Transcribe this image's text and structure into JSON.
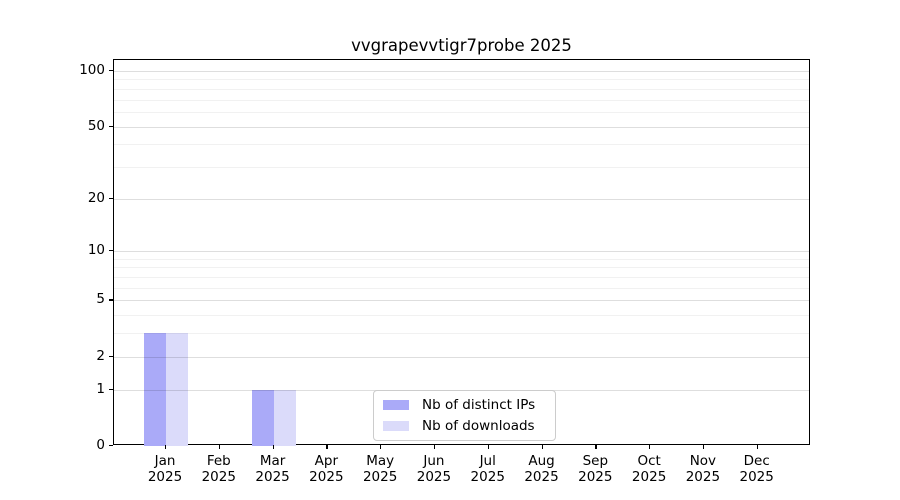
{
  "title": "vvgrapevvtigr7probe 2025",
  "chart_data": {
    "type": "bar",
    "title": "vvgrapevvtigr7probe 2025",
    "categories": [
      "Jan 2025",
      "Feb 2025",
      "Mar 2025",
      "Apr 2025",
      "May 2025",
      "Jun 2025",
      "Jul 2025",
      "Aug 2025",
      "Sep 2025",
      "Oct 2025",
      "Nov 2025",
      "Dec 2025"
    ],
    "series": [
      {
        "name": "Nb of distinct IPs",
        "color": "#aaaaf8",
        "values": [
          3,
          0,
          1,
          0,
          0,
          0,
          0,
          0,
          0,
          0,
          0,
          0
        ]
      },
      {
        "name": "Nb of downloads",
        "color": "#dbdbfa",
        "values": [
          3,
          0,
          1,
          0,
          0,
          0,
          0,
          0,
          0,
          0,
          0,
          0
        ]
      }
    ],
    "xlabel": "",
    "ylabel": "",
    "yscale": "log1p",
    "ylim": [
      0,
      115
    ],
    "y_major_ticks": [
      0,
      1,
      2,
      5,
      10,
      20,
      50,
      100
    ],
    "y_minor_gridlines": [
      3,
      4,
      6,
      7,
      8,
      9,
      30,
      40,
      60,
      70,
      80,
      90
    ],
    "grid": "horizontal-only",
    "grid_above_bars": true,
    "legend_position": "lower center"
  }
}
